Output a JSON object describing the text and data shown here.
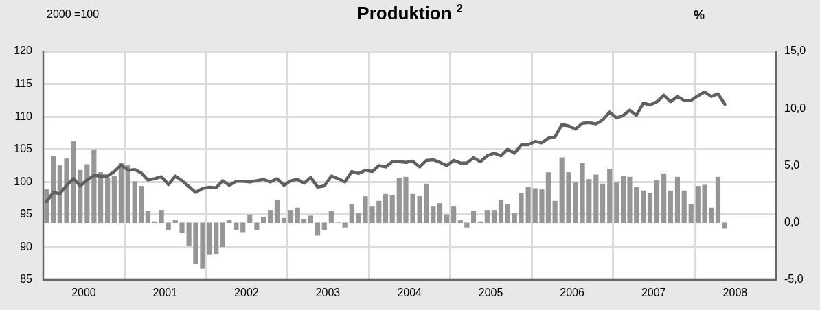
{
  "chart_data": {
    "type": "bar",
    "title": "Produktion $^{2}$",
    "ylabel": "2000 =100",
    "y2label": "%",
    "x": [
      "2000-01-16",
      "2000-02-15",
      "2000-03-16",
      "2000-04-15",
      "2000-05-16",
      "2000-06-15",
      "2000-07-16",
      "2000-08-16",
      "2000-09-15",
      "2000-10-16",
      "2000-11-15",
      "2000-12-16",
      "2001-01-16",
      "2001-02-15",
      "2001-03-16",
      "2001-04-15",
      "2001-05-16",
      "2001-06-15",
      "2001-07-16",
      "2001-08-16",
      "2001-09-15",
      "2001-10-16",
      "2001-11-15",
      "2001-12-16",
      "2002-01-16",
      "2002-02-15",
      "2002-03-16",
      "2002-04-15",
      "2002-05-16",
      "2002-06-15",
      "2002-07-16",
      "2002-08-16",
      "2002-09-15",
      "2002-10-16",
      "2002-11-15",
      "2002-12-16",
      "2003-01-16",
      "2003-02-15",
      "2003-03-16",
      "2003-04-15",
      "2003-05-16",
      "2003-06-15",
      "2003-07-16",
      "2003-08-16",
      "2003-09-15",
      "2003-10-16",
      "2003-11-15",
      "2003-12-16",
      "2004-01-16",
      "2004-02-15",
      "2004-03-16",
      "2004-04-15",
      "2004-05-16",
      "2004-06-15",
      "2004-07-16",
      "2004-08-16",
      "2004-09-15",
      "2004-10-16",
      "2004-11-15",
      "2004-12-16",
      "2005-01-16",
      "2005-02-15",
      "2005-03-16",
      "2005-04-15",
      "2005-05-16",
      "2005-06-15",
      "2005-07-16",
      "2005-08-16",
      "2005-09-15",
      "2005-10-16",
      "2005-11-15",
      "2005-12-16",
      "2006-01-16",
      "2006-02-15",
      "2006-03-16",
      "2006-04-15",
      "2006-05-16",
      "2006-06-15",
      "2006-07-16",
      "2006-08-16",
      "2006-09-15",
      "2006-10-16",
      "2006-11-15",
      "2006-12-16",
      "2007-01-16",
      "2007-02-15",
      "2007-03-16",
      "2007-04-15",
      "2007-05-16",
      "2007-06-15",
      "2007-07-16",
      "2007-08-16",
      "2007-09-15",
      "2007-10-16",
      "2007-11-15",
      "2007-12-16",
      "2008-01-16",
      "2008-02-15",
      "2008-03-16",
      "2008-04-15",
      "2008-05-16"
    ],
    "series": [
      {
        "axis": "y2",
        "color": "#969696",
        "values": [
          2.9,
          5.8,
          5.0,
          5.6,
          7.1,
          4.6,
          5.1,
          6.4,
          4.4,
          3.9,
          4.1,
          5.2,
          5.0,
          3.6,
          3.2,
          1.0,
          0.1,
          1.1,
          -0.6,
          0.2,
          -0.9,
          -2.0,
          -3.6,
          -4.0,
          -2.8,
          -2.7,
          -2.1,
          0.2,
          -0.6,
          -0.8,
          0.7,
          -0.6,
          0.5,
          1.1,
          2.0,
          0.4,
          1.1,
          1.3,
          0.3,
          0.6,
          -1.1,
          -0.6,
          1.0,
          0.0,
          -0.4,
          1.6,
          0.8,
          2.3,
          1.4,
          1.9,
          2.5,
          2.4,
          3.9,
          4.0,
          2.5,
          2.3,
          3.4,
          1.4,
          1.7,
          0.7,
          1.4,
          0.2,
          -0.4,
          1.0,
          0.1,
          1.1,
          1.1,
          2.0,
          1.6,
          0.8,
          2.6,
          3.1,
          3.0,
          2.9,
          4.4,
          1.9,
          5.7,
          4.4,
          3.5,
          5.2,
          3.8,
          4.2,
          3.4,
          4.7,
          3.5,
          4.1,
          4.0,
          3.1,
          2.8,
          2.6,
          3.7,
          4.3,
          2.8,
          4.0,
          2.8,
          1.6,
          3.2,
          3.3,
          1.3,
          4.0,
          -0.5
        ]
      },
      {
        "type": "line",
        "axis": "y",
        "color": "#606060",
        "values": [
          97.0,
          98.4,
          98.2,
          99.5,
          100.5,
          99.4,
          100.3,
          101.0,
          100.9,
          100.9,
          101.6,
          102.6,
          101.8,
          101.9,
          101.4,
          100.3,
          100.5,
          100.8,
          99.6,
          100.9,
          100.2,
          99.3,
          98.4,
          99.0,
          99.2,
          99.1,
          100.2,
          99.5,
          100.1,
          100.1,
          100.0,
          100.2,
          100.4,
          100.0,
          100.5,
          99.5,
          100.2,
          100.4,
          99.8,
          100.7,
          99.2,
          99.4,
          100.9,
          100.5,
          100.0,
          101.6,
          101.3,
          101.8,
          101.6,
          102.5,
          102.3,
          103.1,
          103.1,
          103.0,
          103.2,
          102.3,
          103.3,
          103.4,
          103.0,
          102.5,
          103.3,
          102.9,
          102.9,
          103.7,
          103.1,
          104.0,
          104.4,
          104.0,
          105.0,
          104.4,
          105.7,
          105.7,
          106.2,
          106.0,
          106.7,
          106.9,
          108.8,
          108.6,
          108.1,
          109.0,
          109.1,
          108.9,
          109.5,
          110.7,
          109.8,
          110.2,
          111.0,
          110.2,
          112.1,
          111.8,
          112.3,
          113.3,
          112.3,
          113.1,
          112.5,
          112.5,
          113.2,
          113.8,
          113.1,
          113.5,
          111.9
        ]
      }
    ],
    "xlim": [
      "2000",
      "2009"
    ],
    "xticks": [
      {
        "value": "2000-07",
        "label": "2000"
      },
      {
        "value": "2001",
        "label": null
      },
      {
        "value": "2001-07",
        "label": "2001"
      },
      {
        "value": "2002",
        "label": null
      },
      {
        "value": "2002-07",
        "label": "2002"
      },
      {
        "value": "2003",
        "label": null
      },
      {
        "value": "2003-07",
        "label": "2003"
      },
      {
        "value": "2004",
        "label": null
      },
      {
        "value": "2004-07",
        "label": "2004"
      },
      {
        "value": "2005",
        "label": null
      },
      {
        "value": "2005-07",
        "label": "2005"
      },
      {
        "value": "2006",
        "label": null
      },
      {
        "value": "2006-07",
        "label": "2006"
      },
      {
        "value": "2007",
        "label": null
      },
      {
        "value": "2007-07",
        "label": "2007"
      },
      {
        "value": "2008",
        "label": null
      },
      {
        "value": "2008-07",
        "label": "2008"
      }
    ],
    "ylim": [
      85,
      120
    ],
    "yticks": [
      85,
      90,
      95,
      100,
      105,
      110,
      115,
      120
    ],
    "y2lim": [
      -5,
      15
    ],
    "y2ticks": [
      {
        "value": -5,
        "label": "-5,0"
      },
      {
        "value": 0,
        "label": "0,0"
      },
      {
        "value": 5,
        "label": "5,0"
      },
      {
        "value": 10,
        "label": "10,0"
      },
      {
        "value": 15,
        "label": "15,0"
      }
    ],
    "grid": true,
    "marker": "none",
    "line_style": "solid"
  }
}
